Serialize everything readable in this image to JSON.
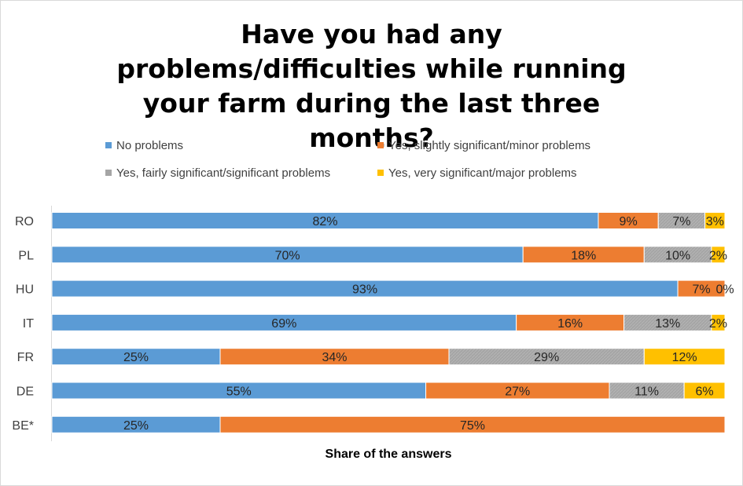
{
  "chart_data": {
    "type": "bar",
    "orientation": "horizontal",
    "stacked": "percent",
    "title": "Have you had any problems/difficulties while running your farm during the last three months?",
    "xlabel": "Share of the answers",
    "ylabel": "",
    "xlim": [
      0,
      100
    ],
    "grid": false,
    "legend_position": "top",
    "categories": [
      "RO",
      "PL",
      "HU",
      "IT",
      "FR",
      "DE",
      "BE*"
    ],
    "series": [
      {
        "name": "No problems",
        "color": "#5b9bd5",
        "values": [
          82,
          70,
          93,
          69,
          25,
          55,
          25
        ],
        "labels": [
          "82%",
          "70%",
          "93%",
          "69%",
          "25%",
          "55%",
          "25%"
        ]
      },
      {
        "name": "Yes, slightly significant/minor problems",
        "color": "#ed7d31",
        "values": [
          9,
          18,
          7,
          16,
          34,
          27,
          75
        ],
        "labels": [
          "9%",
          "18%",
          "7%",
          "16%",
          "34%",
          "27%",
          "75%"
        ]
      },
      {
        "name": "Yes, fairly significant/significant problems",
        "color": "#a5a5a5",
        "values": [
          7,
          10,
          0,
          13,
          29,
          11,
          0
        ],
        "labels": [
          "7%",
          "10%",
          "",
          "13%",
          "29%",
          "11%",
          ""
        ]
      },
      {
        "name": "Yes, very significant/major problems",
        "color": "#ffc000",
        "values": [
          3,
          2,
          0,
          2,
          12,
          6,
          0
        ],
        "labels": [
          "3%",
          "2%",
          "0%",
          "2%",
          "12%",
          "6%",
          ""
        ]
      }
    ]
  }
}
